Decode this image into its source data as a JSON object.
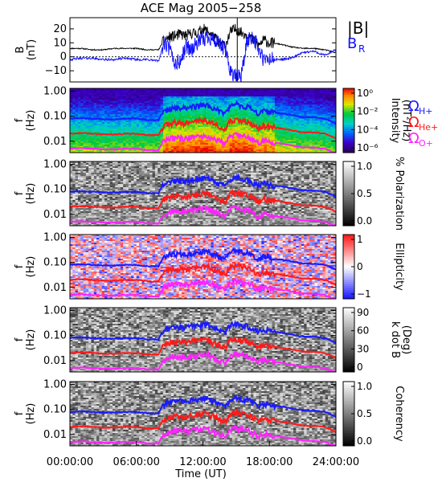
{
  "title": "ACE Mag 2005−258",
  "colors": {
    "bmag": "#000000",
    "br": "#1010ff",
    "h_plus": "#1a1aff",
    "he_plus": "#ff1a1a",
    "o_plus": "#ff22ff"
  },
  "legend": {
    "bmag_label": "|B|",
    "br_label": "B",
    "br_sub": "R",
    "omega": "Ω",
    "h_sub": "H+",
    "he_sub": "He+",
    "o_sub": "O+"
  },
  "x_axis": {
    "label": "Time (UT)",
    "ticks": [
      "00:00:00",
      "06:00:00",
      "12:00:00",
      "18:00:00",
      "24:00:00"
    ]
  },
  "chart_data": [
    {
      "type": "line",
      "panel": "magnetic-field",
      "ylabel": "B",
      "yunit": "(nT)",
      "ylim": [
        -18,
        28
      ],
      "yticks": [
        "20",
        "10",
        "0",
        "−10"
      ],
      "ytick_values": [
        20,
        10,
        0,
        -10
      ],
      "xlim": [
        0,
        24
      ],
      "series": [
        {
          "name": "|B|",
          "color": "#000000",
          "x": [
            0,
            1,
            2,
            3,
            4,
            5,
            6,
            7,
            8,
            8.5,
            9,
            9.5,
            10,
            10.5,
            11,
            11.5,
            12,
            12.5,
            13,
            13.5,
            14,
            14.5,
            15,
            15.5,
            16,
            16.5,
            17,
            17.5,
            18,
            19,
            20,
            21,
            22,
            23,
            24
          ],
          "y": [
            6,
            6,
            5,
            5,
            6,
            6,
            6,
            5,
            5,
            12,
            14,
            15,
            16,
            15,
            17,
            17,
            20,
            18,
            14,
            10,
            8,
            18,
            20,
            17,
            16,
            12,
            8,
            12,
            10,
            9,
            7,
            6,
            6,
            5,
            3
          ]
        },
        {
          "name": "B",
          "color": "#1010ff",
          "x": [
            0,
            1,
            2,
            3,
            4,
            5,
            6,
            7,
            8,
            8.5,
            9,
            9.5,
            10,
            10.5,
            11,
            11.5,
            12,
            12.5,
            13,
            13.5,
            14,
            14.5,
            15,
            15.5,
            16,
            16.5,
            17,
            17.5,
            18,
            19,
            20,
            21,
            22,
            23,
            24
          ],
          "y": [
            -2,
            -1,
            -1,
            -2,
            -2,
            -1,
            -2,
            -2,
            -3,
            10,
            5,
            -5,
            -3,
            8,
            5,
            10,
            12,
            15,
            12,
            8,
            5,
            -10,
            -15,
            -12,
            12,
            15,
            6,
            -3,
            -2,
            -2,
            -1,
            3,
            4,
            1,
            5
          ]
        }
      ]
    },
    {
      "type": "heatmap",
      "panel": "intensity",
      "ylabel": "f",
      "yunit": "(Hz)",
      "colorbar_label": "Intensity",
      "colorbar_unit": "(nT²/Hz)",
      "colorbar_ticks": [
        "10⁰",
        "10⁻²",
        "10⁻⁴",
        "10⁻⁶"
      ],
      "colorscale": "rainbow",
      "yticks": [
        "1.00",
        "0.10",
        "0.01"
      ]
    },
    {
      "type": "heatmap",
      "panel": "polarization",
      "ylabel": "f",
      "yunit": "(Hz)",
      "colorbar_label": "% Polarization",
      "colorbar_ticks": [
        "1.0",
        "0.5",
        "0.0"
      ],
      "colorscale": "gray",
      "yticks": [
        "1.00",
        "0.10",
        "0.01"
      ]
    },
    {
      "type": "heatmap",
      "panel": "ellipticity",
      "ylabel": "f",
      "yunit": "(Hz)",
      "colorbar_label": "Ellipticity",
      "colorbar_ticks": [
        "1",
        "0",
        "−1"
      ],
      "colorscale": "blue-white-red",
      "yticks": [
        "1.00",
        "0.10",
        "0.01"
      ]
    },
    {
      "type": "heatmap",
      "panel": "k-dot-b",
      "ylabel": "f",
      "yunit": "(Hz)",
      "colorbar_label": "k dot B",
      "colorbar_unit": "(Deg)",
      "colorbar_ticks": [
        "90",
        "60",
        "30",
        "0"
      ],
      "colorscale": "gray",
      "yticks": [
        "1.00",
        "0.10",
        "0.01"
      ]
    },
    {
      "type": "heatmap",
      "panel": "coherency",
      "ylabel": "f",
      "yunit": "(Hz)",
      "colorbar_label": "Coherency",
      "colorbar_ticks": [
        "1.0",
        "0.5",
        "0.0"
      ],
      "colorscale": "gray",
      "yticks": [
        "1.00",
        "0.10",
        "0.01"
      ]
    }
  ],
  "gyro_lines": {
    "x": [
      0,
      1,
      2,
      3,
      4,
      5,
      6,
      7,
      8,
      8.5,
      9,
      9.5,
      10,
      10.5,
      11,
      11.5,
      12,
      12.5,
      13,
      13.5,
      14,
      14.5,
      15,
      15.5,
      16,
      16.5,
      17,
      17.5,
      18,
      19,
      20,
      21,
      22,
      23,
      24
    ],
    "h_plus_hz": [
      0.08,
      0.085,
      0.08,
      0.075,
      0.075,
      0.08,
      0.08,
      0.07,
      0.07,
      0.16,
      0.2,
      0.22,
      0.22,
      0.2,
      0.24,
      0.25,
      0.28,
      0.26,
      0.2,
      0.16,
      0.13,
      0.26,
      0.3,
      0.26,
      0.24,
      0.18,
      0.13,
      0.17,
      0.15,
      0.13,
      0.11,
      0.09,
      0.09,
      0.08,
      0.05
    ]
  }
}
